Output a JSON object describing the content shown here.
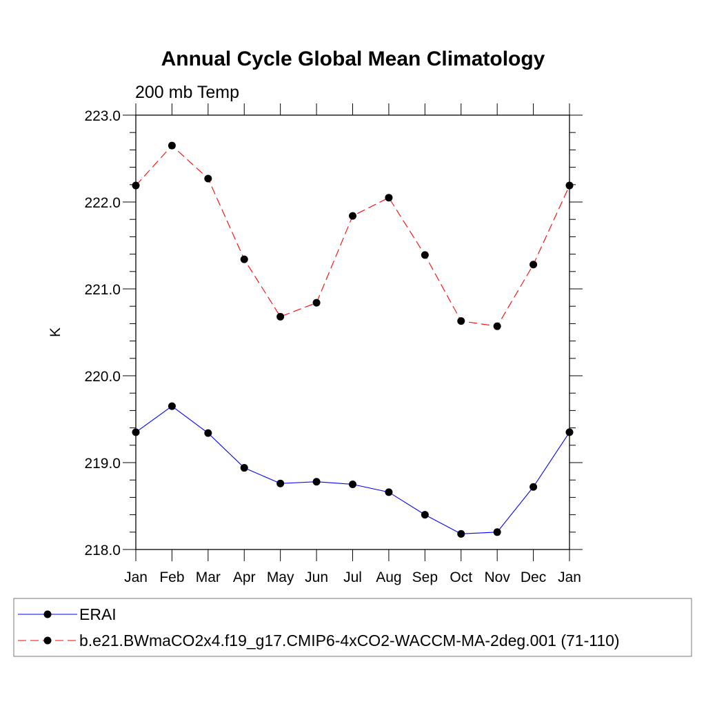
{
  "chart_data": {
    "type": "line",
    "title": "Annual Cycle Global Mean Climatology",
    "subtitle": "200 mb Temp",
    "xlabel": "",
    "ylabel": "K",
    "categories": [
      "Jan",
      "Feb",
      "Mar",
      "Apr",
      "May",
      "Jun",
      "Jul",
      "Aug",
      "Sep",
      "Oct",
      "Nov",
      "Dec",
      "Jan"
    ],
    "ylim": [
      218.0,
      223.0
    ],
    "yticks": [
      "218.0",
      "219.0",
      "220.0",
      "221.0",
      "222.0",
      "223.0"
    ],
    "grid": false,
    "legend_position": "bottom",
    "series": [
      {
        "name": "ERAI",
        "color": "#0000ff",
        "dash": "solid",
        "marker": "filled-circle",
        "values": [
          219.35,
          219.65,
          219.34,
          218.94,
          218.76,
          218.78,
          218.75,
          218.66,
          218.4,
          218.18,
          218.2,
          218.72,
          219.35
        ]
      },
      {
        "name": "b.e21.BWmaCO2x4.f19_g17.CMIP6-4xCO2-WACCM-MA-2deg.001 (71-110)",
        "color": "#ff0000",
        "dash": "dashed",
        "marker": "filled-circle",
        "values": [
          222.19,
          222.65,
          222.27,
          221.34,
          220.68,
          220.84,
          221.84,
          222.05,
          221.39,
          220.63,
          220.57,
          221.28,
          222.19
        ]
      }
    ]
  }
}
